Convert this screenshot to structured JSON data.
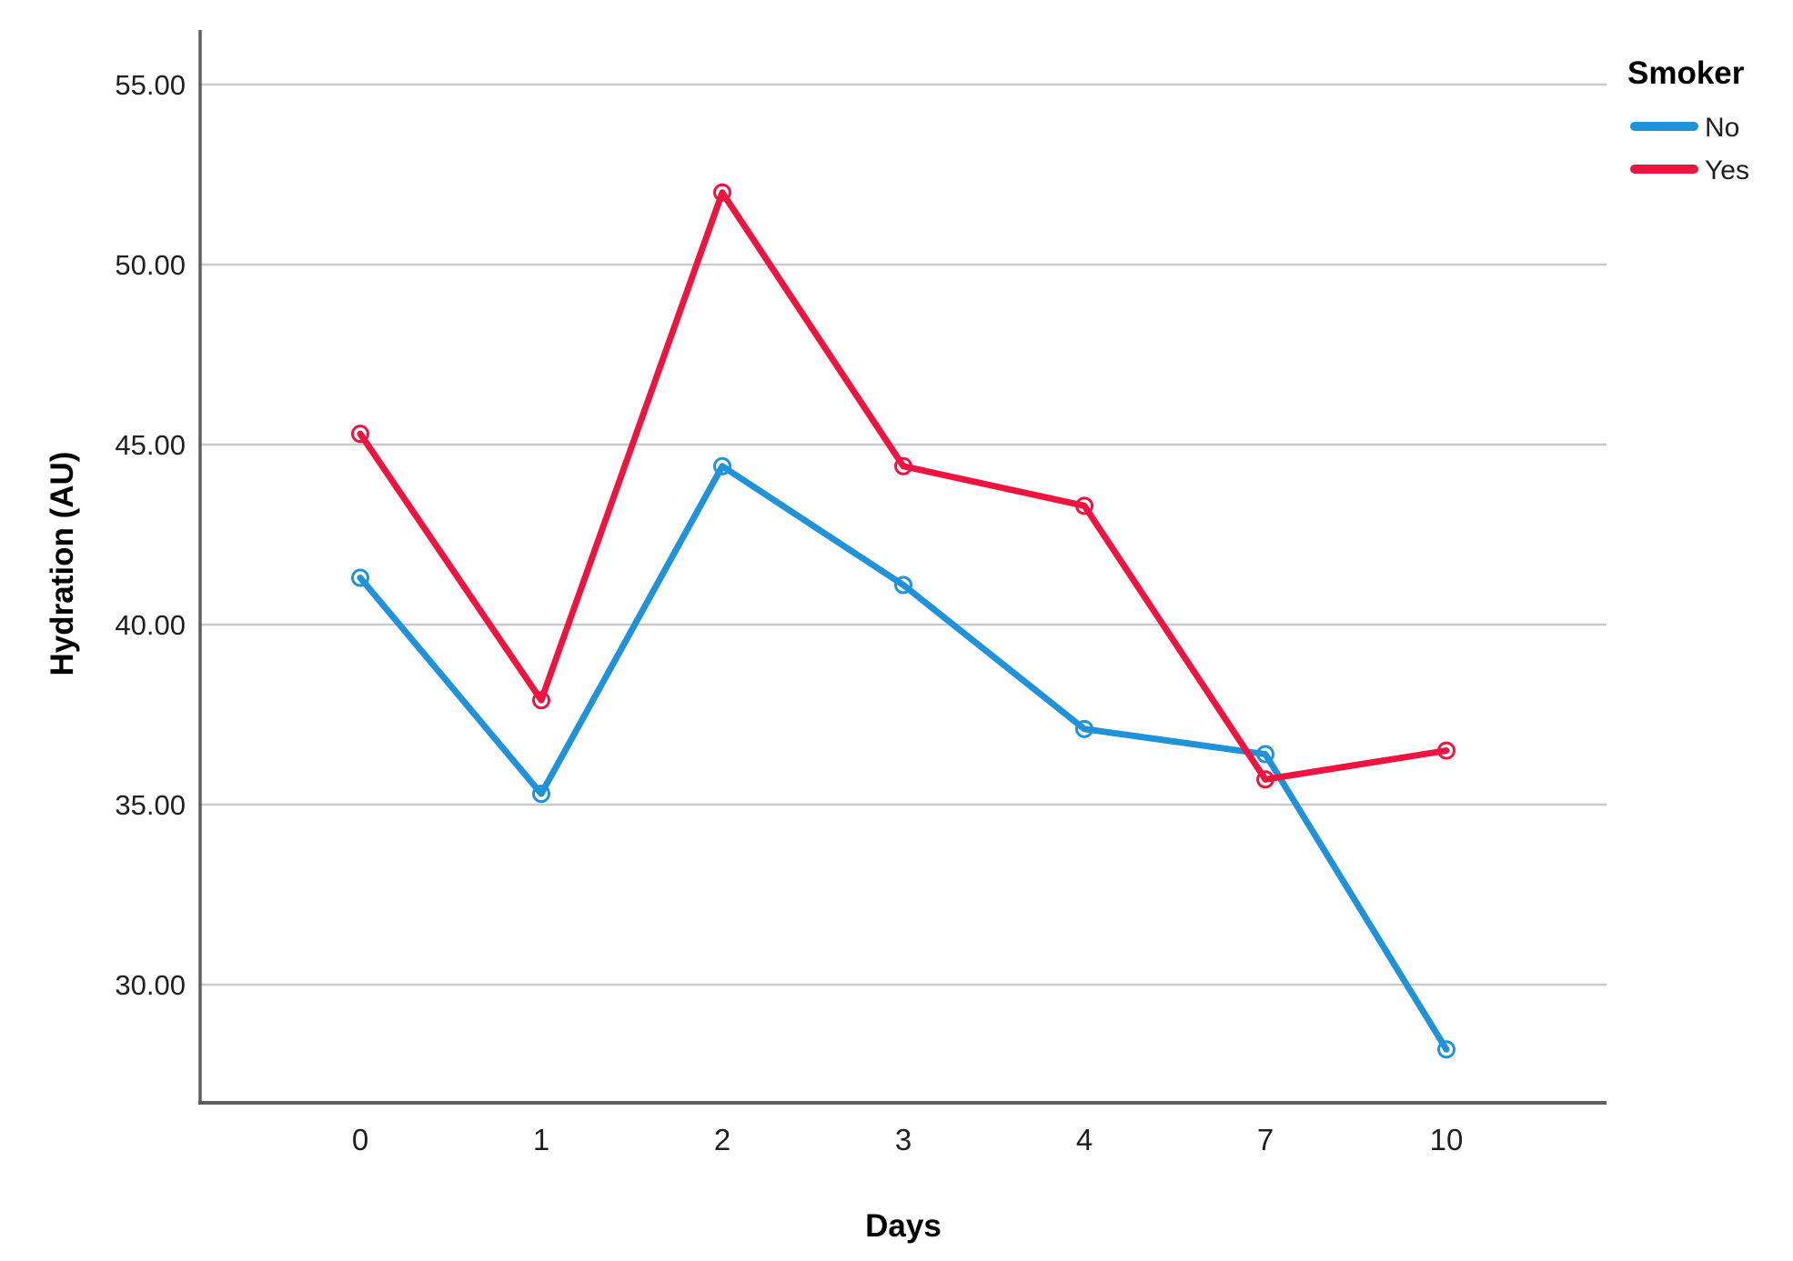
{
  "chart_data": {
    "type": "line",
    "title": "",
    "xlabel": "Days",
    "ylabel": "Hydration (AU)",
    "categories": [
      "0",
      "1",
      "2",
      "3",
      "4",
      "7",
      "10"
    ],
    "series": [
      {
        "name": "No",
        "color": "#2092DA",
        "values": [
          41.3,
          35.3,
          44.4,
          41.1,
          37.1,
          36.4,
          28.2
        ]
      },
      {
        "name": "Yes",
        "color": "#EE1440",
        "values": [
          45.3,
          37.9,
          52.0,
          44.4,
          43.3,
          35.7,
          36.5
        ]
      }
    ],
    "y_ticks": [
      {
        "value": 30,
        "label": "30.00"
      },
      {
        "value": 35,
        "label": "35.00"
      },
      {
        "value": 40,
        "label": "40.00"
      },
      {
        "value": 45,
        "label": "45.00"
      },
      {
        "value": 50,
        "label": "50.00"
      },
      {
        "value": 55,
        "label": "55.00"
      }
    ],
    "ylim": [
      26.7,
      56.5
    ],
    "grid": true,
    "marker": "open-circle",
    "legend": {
      "title": "Smoker",
      "position": "top-right-outside"
    },
    "colors": {
      "grid": "#C9C9C9",
      "axis": "#5F5F5F",
      "tick_text": "#1F1F1F",
      "title_text": "#000000"
    }
  }
}
